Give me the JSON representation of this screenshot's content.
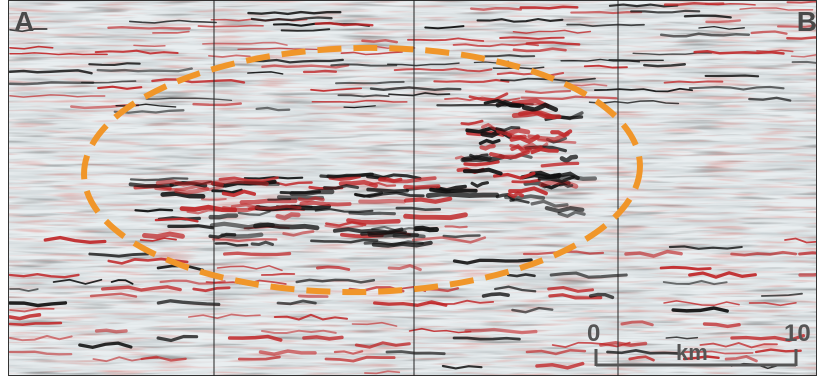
{
  "labels": {
    "left_corner": "A",
    "right_corner": "B"
  },
  "scale_bar": {
    "start": "0",
    "end": "10",
    "unit": "km"
  },
  "colors": {
    "peak": "#c0282a",
    "trough": "#111111",
    "background": "#e8ecef",
    "highlight_ellipse": "#f0962a",
    "scale_bar": "#555555"
  }
}
